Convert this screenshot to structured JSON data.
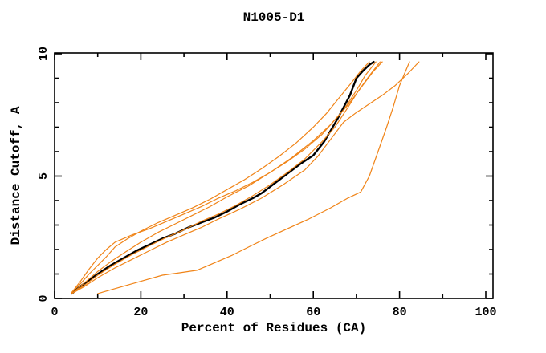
{
  "chart_data": {
    "type": "line",
    "title": "N1005-D1",
    "xlabel": "Percent of Residues (CA)",
    "ylabel": "Distance Cutoff, A",
    "xlim": [
      0,
      102
    ],
    "ylim": [
      0,
      10
    ],
    "grid": false,
    "legend": "none",
    "tick_style": "inward box ticks on all four sides, y tick labels rotated 90",
    "xticks": {
      "major": [
        0,
        20,
        40,
        60,
        80,
        100
      ],
      "minor": [
        10,
        30,
        50,
        70,
        90
      ]
    },
    "yticks": {
      "major": [
        0,
        5,
        10
      ],
      "minor": [
        1,
        2,
        3,
        4,
        6,
        7,
        8,
        9
      ]
    },
    "colors": {
      "main_curve": "#000000",
      "comparison_curves": "#f08418",
      "axis": "#000000",
      "background": "#ffffff"
    },
    "series": [
      {
        "name": "black-main-curve",
        "color": "#000000",
        "width": 2.4,
        "x": [
          4,
          6,
          8,
          10,
          13,
          16,
          19,
          22,
          25,
          28,
          31,
          34,
          37,
          40,
          43,
          46,
          48,
          51,
          54,
          57,
          60,
          62.5,
          65.5,
          67,
          68.5,
          70,
          71.5,
          73,
          74
        ],
        "y": [
          0.2,
          0.5,
          0.75,
          1.0,
          1.35,
          1.65,
          1.95,
          2.2,
          2.45,
          2.65,
          2.9,
          3.1,
          3.3,
          3.55,
          3.85,
          4.1,
          4.3,
          4.7,
          5.1,
          5.5,
          5.85,
          6.4,
          7.3,
          7.8,
          8.3,
          9.0,
          9.3,
          9.55,
          9.67
        ]
      },
      {
        "name": "orange-curve-1",
        "color": "#f08418",
        "width": 1.2,
        "x": [
          4,
          6,
          8,
          10,
          12,
          14,
          17,
          20,
          24,
          28,
          32,
          36,
          40,
          44,
          48,
          52,
          56,
          60,
          63,
          66,
          69,
          71,
          73
        ],
        "y": [
          0.25,
          0.6,
          1.0,
          1.35,
          1.7,
          2.1,
          2.45,
          2.75,
          3.1,
          3.4,
          3.7,
          4.05,
          4.45,
          4.85,
          5.3,
          5.8,
          6.35,
          7.0,
          7.55,
          8.2,
          8.85,
          9.3,
          9.67
        ]
      },
      {
        "name": "orange-curve-2",
        "color": "#f08418",
        "width": 1.2,
        "x": [
          4,
          7,
          10,
          13,
          16,
          20,
          24,
          28,
          32,
          36,
          40,
          45,
          50,
          55,
          60,
          64,
          67,
          70,
          72,
          74.5
        ],
        "y": [
          0.2,
          0.65,
          1.1,
          1.5,
          1.85,
          2.3,
          2.7,
          3.05,
          3.4,
          3.75,
          4.15,
          4.6,
          5.15,
          5.75,
          6.45,
          7.1,
          7.7,
          8.5,
          9.1,
          9.67
        ]
      },
      {
        "name": "orange-curve-3",
        "color": "#f08418",
        "width": 1.2,
        "x": [
          4,
          6,
          8,
          10,
          12,
          14,
          18,
          22,
          26,
          30,
          34,
          38,
          42,
          46,
          50,
          54,
          58,
          62,
          65,
          68,
          71,
          74,
          76
        ],
        "y": [
          0.25,
          0.7,
          1.2,
          1.65,
          2.0,
          2.3,
          2.6,
          2.85,
          3.15,
          3.45,
          3.75,
          4.1,
          4.4,
          4.75,
          5.15,
          5.6,
          6.1,
          6.7,
          7.3,
          7.9,
          8.6,
          9.3,
          9.67
        ]
      },
      {
        "name": "orange-curve-4",
        "color": "#f08418",
        "width": 1.2,
        "x": [
          4,
          7,
          10,
          14,
          18,
          22,
          26,
          30,
          34,
          38,
          42,
          46,
          50,
          54,
          58,
          62,
          65,
          68,
          70.5,
          73,
          75.5
        ],
        "y": [
          0.2,
          0.55,
          0.95,
          1.4,
          1.8,
          2.15,
          2.5,
          2.8,
          3.15,
          3.45,
          3.8,
          4.2,
          4.65,
          5.15,
          5.7,
          6.4,
          7.0,
          7.8,
          8.5,
          9.1,
          9.67
        ]
      },
      {
        "name": "orange-curve-5",
        "color": "#f08418",
        "width": 1.2,
        "x": [
          4,
          7,
          10,
          14,
          18,
          22,
          26,
          30,
          34,
          38,
          43,
          48,
          53,
          58,
          61,
          64,
          67,
          70,
          73,
          76,
          79,
          82,
          84.5
        ],
        "y": [
          0.2,
          0.5,
          0.85,
          1.25,
          1.6,
          1.95,
          2.3,
          2.6,
          2.9,
          3.25,
          3.65,
          4.1,
          4.65,
          5.25,
          5.8,
          6.5,
          7.2,
          7.6,
          7.95,
          8.3,
          8.7,
          9.2,
          9.67
        ]
      },
      {
        "name": "orange-curve-6",
        "color": "#f08418",
        "width": 1.2,
        "x": [
          10,
          13,
          17,
          21,
          25,
          29,
          33,
          37,
          41,
          45,
          49,
          54,
          59,
          64,
          68,
          71,
          73,
          75,
          77,
          78.5,
          80,
          81.3,
          82.3
        ],
        "y": [
          0.2,
          0.35,
          0.55,
          0.75,
          0.95,
          1.05,
          1.15,
          1.45,
          1.75,
          2.1,
          2.45,
          2.85,
          3.25,
          3.7,
          4.1,
          4.35,
          5.0,
          6.0,
          7.0,
          7.8,
          8.7,
          9.25,
          9.67
        ]
      }
    ]
  }
}
